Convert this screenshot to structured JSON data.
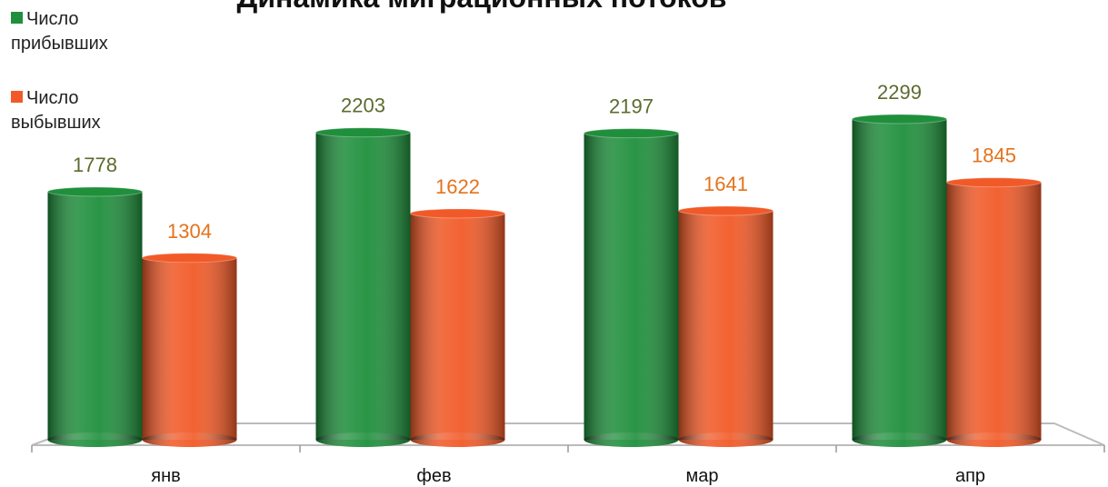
{
  "chart_data": {
    "type": "bar3d",
    "title": "Динамика миграционных потоков",
    "categories": [
      "янв",
      "фев",
      "мар",
      "апр"
    ],
    "series": [
      {
        "name": "Число прибывших",
        "color": "#1f8f3c",
        "label_color": "#5b6b2e",
        "values": [
          1778,
          2203,
          2197,
          2299
        ]
      },
      {
        "name": "Число выбывших",
        "color": "#f15a28",
        "label_color": "#e4731c",
        "values": [
          1304,
          1622,
          1641,
          1845
        ]
      }
    ],
    "legend": "top-left"
  }
}
